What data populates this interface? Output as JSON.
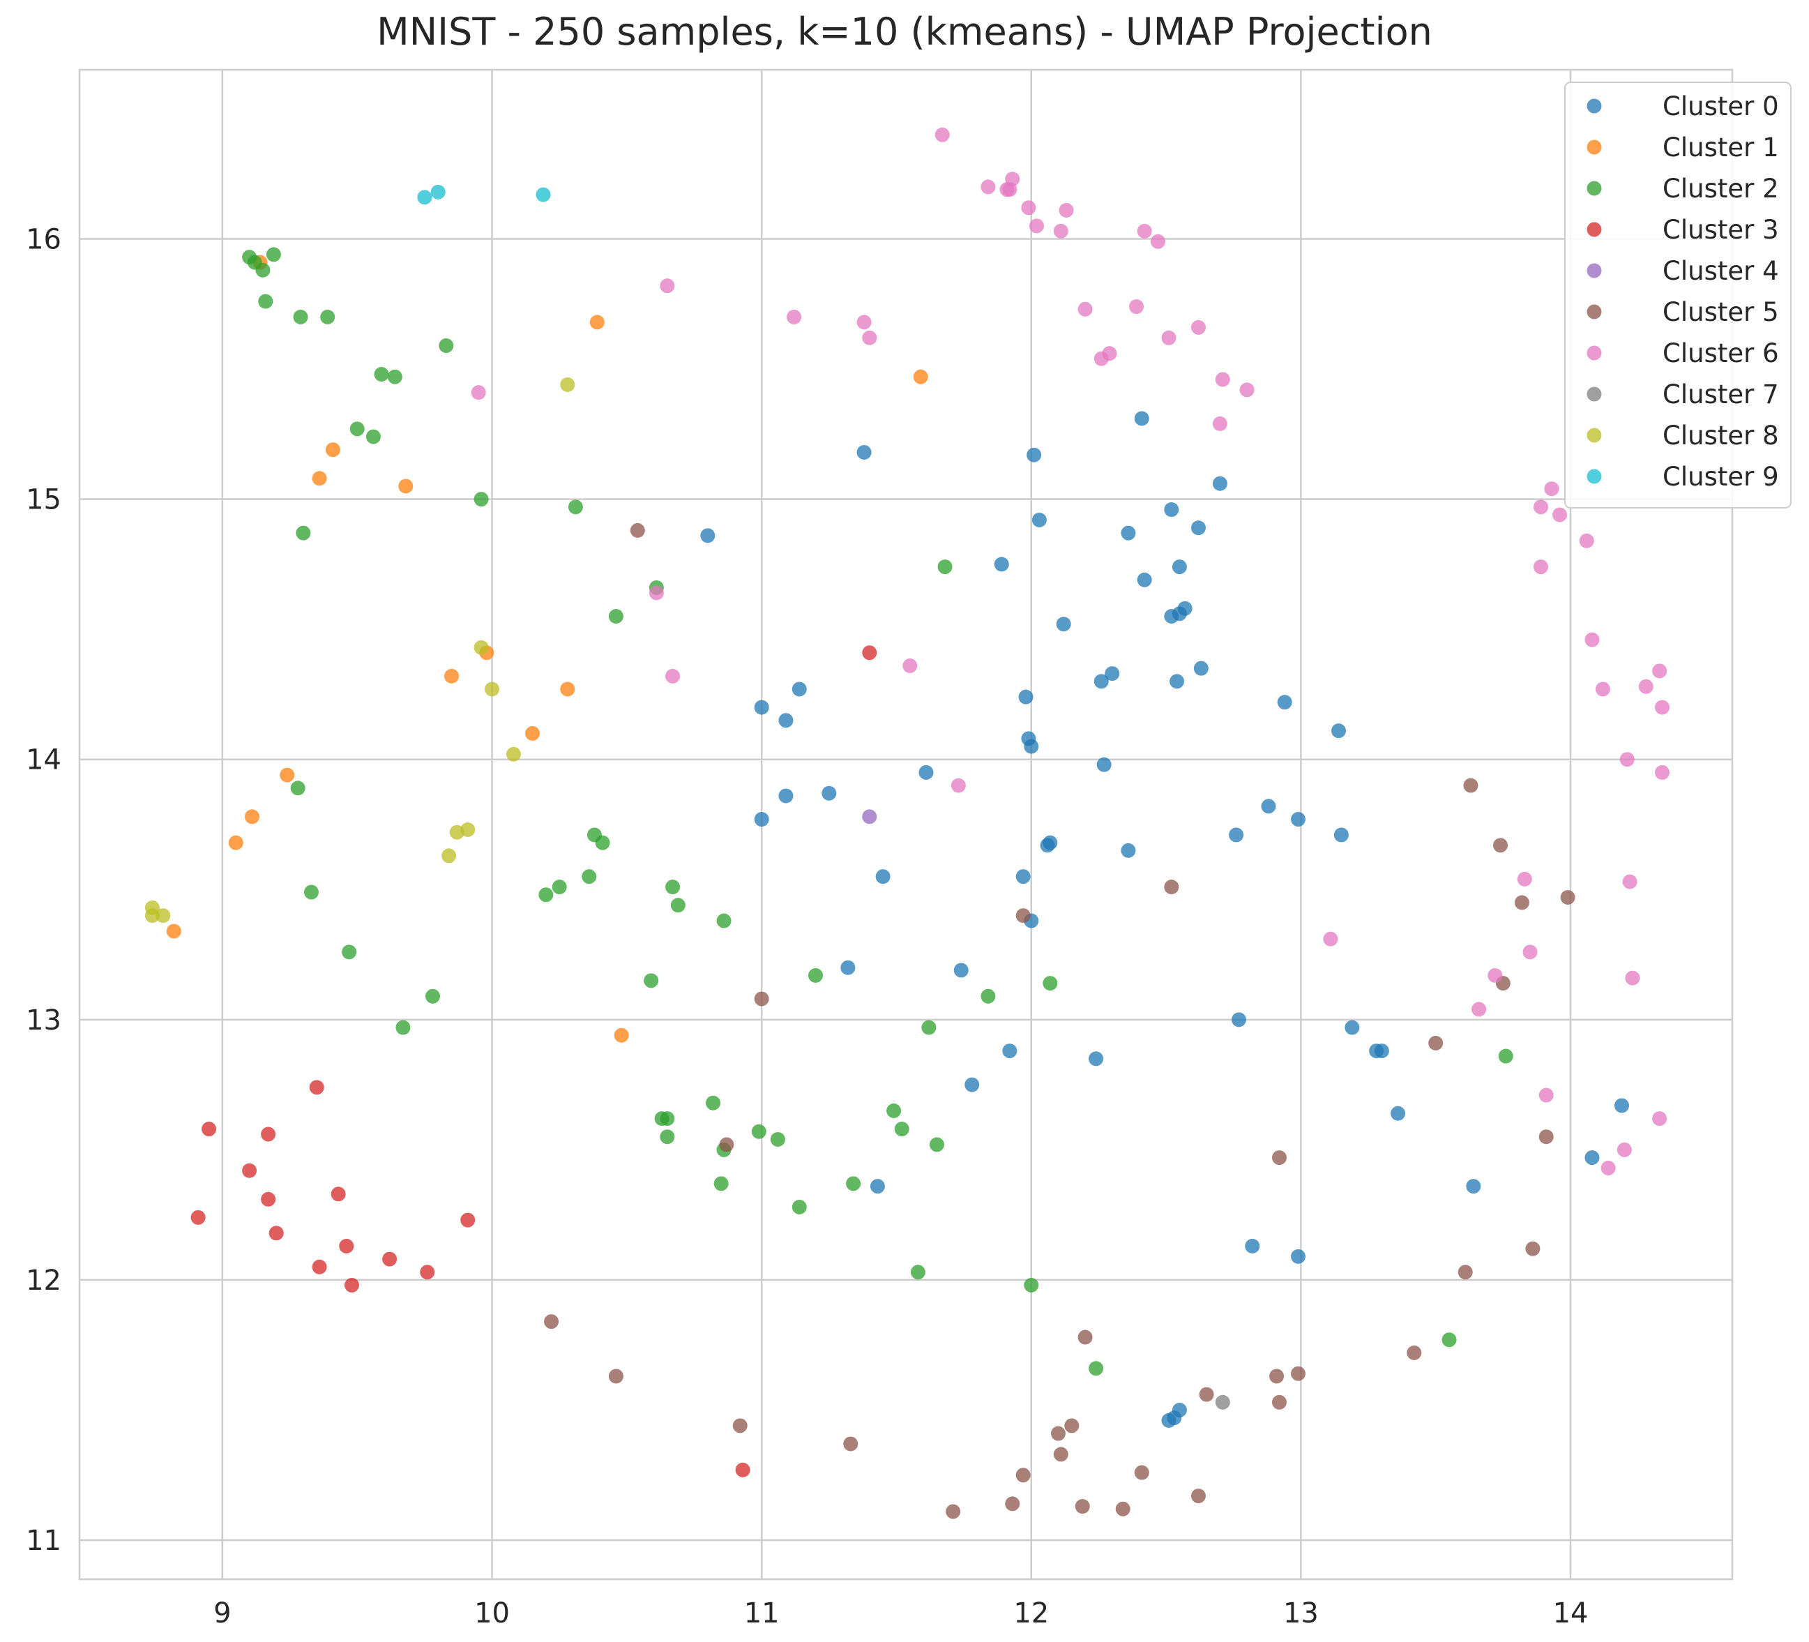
{
  "chart_data": {
    "type": "scatter",
    "title": "MNIST - 250 samples, k=10 (kmeans) - UMAP Projection",
    "xlabel": "",
    "ylabel": "",
    "xlim": [
      8.47,
      14.6
    ],
    "ylim": [
      10.85,
      16.65
    ],
    "xticks": [
      9,
      10,
      11,
      12,
      13,
      14
    ],
    "yticks": [
      11,
      12,
      13,
      14,
      15,
      16
    ],
    "grid": true,
    "legend_position": "top-right",
    "series": [
      {
        "name": "Cluster 0",
        "color": "#1f77b4",
        "points": [
          [
            10.8,
            14.86
          ],
          [
            11.38,
            15.18
          ],
          [
            12.01,
            15.17
          ],
          [
            12.41,
            15.31
          ],
          [
            12.7,
            15.06
          ],
          [
            12.03,
            14.92
          ],
          [
            12.36,
            14.87
          ],
          [
            12.52,
            14.96
          ],
          [
            12.62,
            14.89
          ],
          [
            11.89,
            14.75
          ],
          [
            12.42,
            14.69
          ],
          [
            12.55,
            14.74
          ],
          [
            12.52,
            14.55
          ],
          [
            12.57,
            14.58
          ],
          [
            12.55,
            14.56
          ],
          [
            12.12,
            14.52
          ],
          [
            11.0,
            14.2
          ],
          [
            11.09,
            14.15
          ],
          [
            11.14,
            14.27
          ],
          [
            11.98,
            14.24
          ],
          [
            12.26,
            14.3
          ],
          [
            12.3,
            14.33
          ],
          [
            12.54,
            14.3
          ],
          [
            12.63,
            14.35
          ],
          [
            12.94,
            14.22
          ],
          [
            13.14,
            14.11
          ],
          [
            11.99,
            14.08
          ],
          [
            12.0,
            14.05
          ],
          [
            12.27,
            13.98
          ],
          [
            11.61,
            13.95
          ],
          [
            11.09,
            13.86
          ],
          [
            11.25,
            13.87
          ],
          [
            11.0,
            13.77
          ],
          [
            12.06,
            13.67
          ],
          [
            12.07,
            13.68
          ],
          [
            12.36,
            13.65
          ],
          [
            12.76,
            13.71
          ],
          [
            12.88,
            13.82
          ],
          [
            12.99,
            13.77
          ],
          [
            13.15,
            13.71
          ],
          [
            11.45,
            13.55
          ],
          [
            11.97,
            13.55
          ],
          [
            12.0,
            13.38
          ],
          [
            11.32,
            13.2
          ],
          [
            11.74,
            13.19
          ],
          [
            12.77,
            13.0
          ],
          [
            13.19,
            12.97
          ],
          [
            13.28,
            12.88
          ],
          [
            13.3,
            12.88
          ],
          [
            11.92,
            12.88
          ],
          [
            12.24,
            12.85
          ],
          [
            11.78,
            12.75
          ],
          [
            13.36,
            12.64
          ],
          [
            14.19,
            12.67
          ],
          [
            14.08,
            12.47
          ],
          [
            13.64,
            12.36
          ],
          [
            11.43,
            12.36
          ],
          [
            12.82,
            12.13
          ],
          [
            12.99,
            12.09
          ],
          [
            12.51,
            11.46
          ],
          [
            12.55,
            11.5
          ],
          [
            12.53,
            11.47
          ]
        ]
      },
      {
        "name": "Cluster 1",
        "color": "#ff7f0e",
        "points": [
          [
            9.14,
            15.91
          ],
          [
            10.39,
            15.68
          ],
          [
            11.59,
            15.47
          ],
          [
            9.41,
            15.19
          ],
          [
            9.36,
            15.08
          ],
          [
            9.68,
            15.05
          ],
          [
            9.98,
            14.41
          ],
          [
            9.85,
            14.32
          ],
          [
            10.28,
            14.27
          ],
          [
            10.15,
            14.1
          ],
          [
            9.24,
            13.94
          ],
          [
            9.11,
            13.78
          ],
          [
            9.05,
            13.68
          ],
          [
            8.82,
            13.34
          ],
          [
            10.48,
            12.94
          ]
        ]
      },
      {
        "name": "Cluster 2",
        "color": "#2ca02c",
        "points": [
          [
            9.1,
            15.93
          ],
          [
            9.12,
            15.91
          ],
          [
            9.19,
            15.94
          ],
          [
            9.15,
            15.88
          ],
          [
            9.16,
            15.76
          ],
          [
            9.29,
            15.7
          ],
          [
            9.39,
            15.7
          ],
          [
            9.83,
            15.59
          ],
          [
            9.59,
            15.48
          ],
          [
            9.64,
            15.47
          ],
          [
            9.5,
            15.27
          ],
          [
            9.56,
            15.24
          ],
          [
            9.96,
            15.0
          ],
          [
            10.31,
            14.97
          ],
          [
            9.3,
            14.87
          ],
          [
            11.68,
            14.74
          ],
          [
            10.61,
            14.66
          ],
          [
            10.46,
            14.55
          ],
          [
            9.28,
            13.89
          ],
          [
            10.38,
            13.71
          ],
          [
            10.41,
            13.68
          ],
          [
            10.36,
            13.55
          ],
          [
            10.25,
            13.51
          ],
          [
            10.2,
            13.48
          ],
          [
            10.67,
            13.51
          ],
          [
            10.69,
            13.44
          ],
          [
            10.86,
            13.38
          ],
          [
            9.33,
            13.49
          ],
          [
            9.47,
            13.26
          ],
          [
            10.59,
            13.15
          ],
          [
            11.2,
            13.17
          ],
          [
            12.07,
            13.14
          ],
          [
            9.78,
            13.09
          ],
          [
            11.84,
            13.09
          ],
          [
            11.62,
            12.97
          ],
          [
            9.67,
            12.97
          ],
          [
            10.82,
            12.68
          ],
          [
            11.49,
            12.65
          ],
          [
            10.63,
            12.62
          ],
          [
            10.65,
            12.62
          ],
          [
            11.52,
            12.58
          ],
          [
            10.99,
            12.57
          ],
          [
            10.65,
            12.55
          ],
          [
            11.06,
            12.54
          ],
          [
            11.65,
            12.52
          ],
          [
            10.86,
            12.5
          ],
          [
            10.85,
            12.37
          ],
          [
            11.34,
            12.37
          ],
          [
            11.14,
            12.28
          ],
          [
            11.58,
            12.03
          ],
          [
            12.0,
            11.98
          ],
          [
            13.76,
            12.86
          ],
          [
            13.55,
            11.77
          ],
          [
            12.24,
            11.66
          ]
        ]
      },
      {
        "name": "Cluster 3",
        "color": "#d62728",
        "points": [
          [
            11.4,
            14.41
          ],
          [
            9.35,
            12.74
          ],
          [
            8.95,
            12.58
          ],
          [
            9.17,
            12.56
          ],
          [
            9.1,
            12.42
          ],
          [
            9.43,
            12.33
          ],
          [
            9.17,
            12.31
          ],
          [
            8.91,
            12.24
          ],
          [
            9.91,
            12.23
          ],
          [
            9.2,
            12.18
          ],
          [
            9.46,
            12.13
          ],
          [
            9.36,
            12.05
          ],
          [
            9.62,
            12.08
          ],
          [
            9.76,
            12.03
          ],
          [
            9.48,
            11.98
          ],
          [
            10.93,
            11.27
          ]
        ]
      },
      {
        "name": "Cluster 4",
        "color": "#9467bd",
        "points": [
          [
            11.4,
            13.78
          ]
        ]
      },
      {
        "name": "Cluster 5",
        "color": "#8c564b",
        "points": [
          [
            10.54,
            14.88
          ],
          [
            13.63,
            13.9
          ],
          [
            13.74,
            13.67
          ],
          [
            13.82,
            13.45
          ],
          [
            13.99,
            13.47
          ],
          [
            12.52,
            13.51
          ],
          [
            11.97,
            13.4
          ],
          [
            13.75,
            13.14
          ],
          [
            11.0,
            13.08
          ],
          [
            13.5,
            12.91
          ],
          [
            13.91,
            12.55
          ],
          [
            10.87,
            12.52
          ],
          [
            12.92,
            12.47
          ],
          [
            13.86,
            12.12
          ],
          [
            13.61,
            12.03
          ],
          [
            10.22,
            11.84
          ],
          [
            12.2,
            11.78
          ],
          [
            13.42,
            11.72
          ],
          [
            10.46,
            11.63
          ],
          [
            12.91,
            11.63
          ],
          [
            12.99,
            11.64
          ],
          [
            12.65,
            11.56
          ],
          [
            12.92,
            11.53
          ],
          [
            10.92,
            11.44
          ],
          [
            12.15,
            11.44
          ],
          [
            12.1,
            11.41
          ],
          [
            11.33,
            11.37
          ],
          [
            12.11,
            11.33
          ],
          [
            11.97,
            11.25
          ],
          [
            12.41,
            11.26
          ],
          [
            12.62,
            11.17
          ],
          [
            11.93,
            11.14
          ],
          [
            12.19,
            11.13
          ],
          [
            12.34,
            11.12
          ],
          [
            11.71,
            11.11
          ]
        ]
      },
      {
        "name": "Cluster 6",
        "color": "#e377c2",
        "points": [
          [
            11.67,
            16.4
          ],
          [
            11.93,
            16.23
          ],
          [
            11.84,
            16.2
          ],
          [
            11.91,
            16.19
          ],
          [
            11.92,
            16.19
          ],
          [
            12.13,
            16.11
          ],
          [
            11.99,
            16.12
          ],
          [
            12.02,
            16.05
          ],
          [
            12.11,
            16.03
          ],
          [
            12.42,
            16.03
          ],
          [
            12.47,
            15.99
          ],
          [
            10.65,
            15.82
          ],
          [
            11.12,
            15.7
          ],
          [
            11.38,
            15.68
          ],
          [
            11.4,
            15.62
          ],
          [
            12.2,
            15.73
          ],
          [
            12.39,
            15.74
          ],
          [
            12.51,
            15.62
          ],
          [
            12.62,
            15.66
          ],
          [
            12.29,
            15.56
          ],
          [
            12.26,
            15.54
          ],
          [
            12.71,
            15.46
          ],
          [
            12.8,
            15.42
          ],
          [
            9.95,
            15.41
          ],
          [
            12.7,
            15.29
          ],
          [
            13.93,
            15.04
          ],
          [
            13.89,
            14.97
          ],
          [
            13.96,
            14.94
          ],
          [
            14.06,
            14.84
          ],
          [
            13.89,
            14.74
          ],
          [
            10.61,
            14.64
          ],
          [
            14.08,
            14.46
          ],
          [
            11.55,
            14.36
          ],
          [
            10.67,
            14.32
          ],
          [
            14.33,
            14.34
          ],
          [
            14.28,
            14.28
          ],
          [
            14.12,
            14.27
          ],
          [
            14.34,
            14.2
          ],
          [
            14.21,
            14.0
          ],
          [
            14.34,
            13.95
          ],
          [
            11.73,
            13.9
          ],
          [
            13.83,
            13.54
          ],
          [
            14.22,
            13.53
          ],
          [
            13.11,
            13.31
          ],
          [
            13.85,
            13.26
          ],
          [
            13.72,
            13.17
          ],
          [
            14.23,
            13.16
          ],
          [
            13.66,
            13.04
          ],
          [
            13.91,
            12.71
          ],
          [
            14.33,
            12.62
          ],
          [
            14.2,
            12.5
          ],
          [
            14.14,
            12.43
          ]
        ]
      },
      {
        "name": "Cluster 7",
        "color": "#7f7f7f",
        "points": [
          [
            12.71,
            11.53
          ]
        ]
      },
      {
        "name": "Cluster 8",
        "color": "#bcbd22",
        "points": [
          [
            10.28,
            15.44
          ],
          [
            9.96,
            14.43
          ],
          [
            10.0,
            14.27
          ],
          [
            10.08,
            14.02
          ],
          [
            9.91,
            13.73
          ],
          [
            9.87,
            13.72
          ],
          [
            9.84,
            13.63
          ],
          [
            8.74,
            13.43
          ],
          [
            8.78,
            13.4
          ],
          [
            8.74,
            13.4
          ]
        ]
      },
      {
        "name": "Cluster 9",
        "color": "#17becf",
        "points": [
          [
            9.75,
            16.16
          ],
          [
            9.8,
            16.18
          ],
          [
            10.19,
            16.17
          ]
        ]
      }
    ]
  }
}
